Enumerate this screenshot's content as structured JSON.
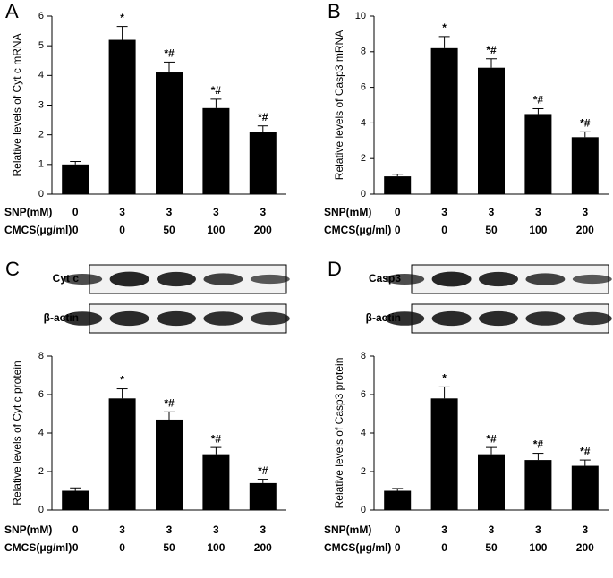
{
  "chart_data": [
    {
      "type": "bar",
      "panel": "A",
      "ylabel": "Relative levels of Cyt c mRNA",
      "color": "#000000",
      "ylim": [
        0,
        6
      ],
      "yticks": [
        0,
        1,
        2,
        3,
        4,
        5,
        6
      ],
      "values": [
        1.0,
        5.2,
        4.1,
        2.9,
        2.1
      ],
      "errors": [
        0.1,
        0.45,
        0.35,
        0.3,
        0.2
      ],
      "annotations": [
        null,
        "*",
        "*#",
        "*#",
        "*#"
      ],
      "category_rows": [
        {
          "name": "SNP(mM)",
          "labels": [
            "0",
            "3",
            "3",
            "3",
            "3"
          ]
        },
        {
          "name": "CMCS(μg/ml)",
          "labels": [
            "0",
            "0",
            "50",
            "100",
            "200"
          ]
        }
      ]
    },
    {
      "type": "bar",
      "panel": "B",
      "ylabel": "Relative levels of Casp3 mRNA",
      "color": "#000000",
      "ylim": [
        0,
        10
      ],
      "yticks": [
        0,
        2,
        4,
        6,
        8,
        10
      ],
      "values": [
        1.0,
        8.2,
        7.1,
        4.5,
        3.2
      ],
      "errors": [
        0.12,
        0.65,
        0.5,
        0.3,
        0.3
      ],
      "annotations": [
        null,
        "*",
        "*#",
        "*#",
        "*#"
      ],
      "category_rows": [
        {
          "name": "SNP(mM)",
          "labels": [
            "0",
            "3",
            "3",
            "3",
            "3"
          ]
        },
        {
          "name": "CMCS(μg/ml)",
          "labels": [
            "0",
            "0",
            "50",
            "100",
            "200"
          ]
        }
      ]
    },
    {
      "type": "bar",
      "panel": "C",
      "ylabel": "Relative levels of Cyt c protein",
      "color": "#000000",
      "ylim": [
        0,
        8
      ],
      "yticks": [
        0,
        2,
        4,
        6,
        8
      ],
      "values": [
        1.0,
        5.8,
        4.7,
        2.9,
        1.4
      ],
      "errors": [
        0.15,
        0.5,
        0.4,
        0.35,
        0.2
      ],
      "annotations": [
        null,
        "*",
        "*#",
        "*#",
        "*#"
      ],
      "blot_rows": [
        "Cyt c",
        "β-actin"
      ],
      "category_rows": [
        {
          "name": "SNP(mM)",
          "labels": [
            "0",
            "3",
            "3",
            "3",
            "3"
          ]
        },
        {
          "name": "CMCS(μg/ml)",
          "labels": [
            "0",
            "0",
            "50",
            "100",
            "200"
          ]
        }
      ]
    },
    {
      "type": "bar",
      "panel": "D",
      "ylabel": "Relative levels of Casp3 protein",
      "color": "#000000",
      "ylim": [
        0,
        8
      ],
      "yticks": [
        0,
        2,
        4,
        6,
        8
      ],
      "values": [
        1.0,
        5.8,
        2.9,
        2.6,
        2.3
      ],
      "errors": [
        0.12,
        0.6,
        0.35,
        0.35,
        0.3
      ],
      "annotations": [
        null,
        "*",
        "*#",
        "*#",
        "*#"
      ],
      "blot_rows": [
        "Casp3",
        "β-actin"
      ],
      "category_rows": [
        {
          "name": "SNP(mM)",
          "labels": [
            "0",
            "3",
            "3",
            "3",
            "3"
          ]
        },
        {
          "name": "CMCS(μg/ml)",
          "labels": [
            "0",
            "0",
            "50",
            "100",
            "200"
          ]
        }
      ]
    }
  ]
}
